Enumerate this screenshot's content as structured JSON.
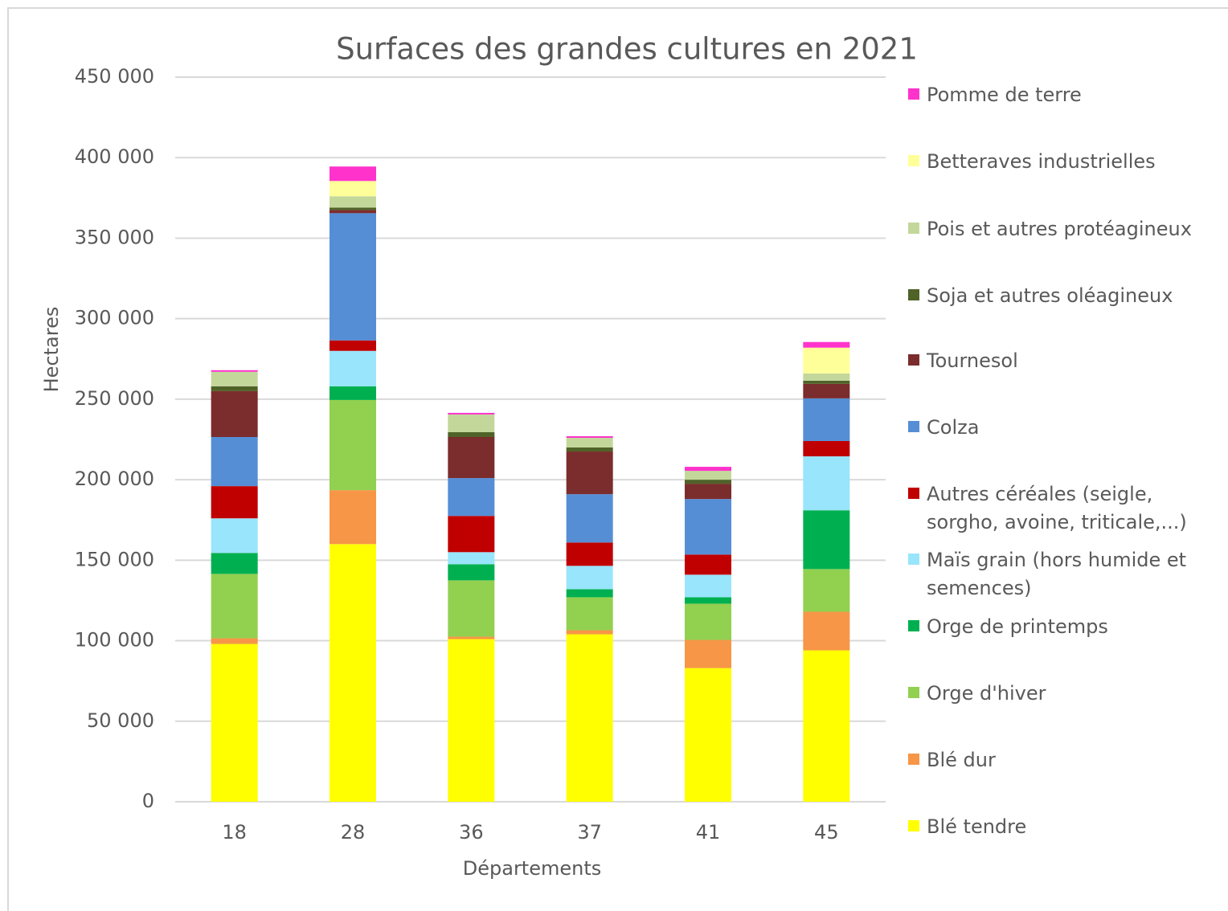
{
  "chart_data": {
    "type": "stacked_bar",
    "title": "Surfaces des grandes cultures en 2021",
    "x_label": "Départements",
    "y_label": "Hectares",
    "categories": [
      "18",
      "28",
      "36",
      "37",
      "41",
      "45"
    ],
    "series": [
      {
        "name": "Blé tendre",
        "color": "#ffff00",
        "values": [
          98000,
          160000,
          101000,
          104000,
          83000,
          94000
        ]
      },
      {
        "name": "Blé dur",
        "color": "#f79646",
        "values": [
          3500,
          33500,
          1500,
          2500,
          17500,
          24000
        ]
      },
      {
        "name": "Orge d'hiver",
        "color": "#92d050",
        "values": [
          40000,
          56000,
          35000,
          20500,
          22500,
          26500
        ]
      },
      {
        "name": "Orge de printemps",
        "color": "#00b050",
        "values": [
          13000,
          8500,
          10000,
          5000,
          4000,
          36500
        ]
      },
      {
        "name": "Maïs grain (hors humide et semences)",
        "color": "#99e5fb",
        "values": [
          21500,
          22000,
          7500,
          14500,
          14000,
          33500
        ]
      },
      {
        "name": "Autres céréales (seigle, sorgho, avoine, triticale,...)",
        "color": "#c00000",
        "values": [
          20000,
          6500,
          22500,
          14500,
          12500,
          9500
        ]
      },
      {
        "name": "Colza",
        "color": "#558ed5",
        "values": [
          30500,
          79000,
          23500,
          30000,
          34500,
          26500
        ]
      },
      {
        "name": "Tournesol",
        "color": "#7b2c2c",
        "values": [
          28500,
          2000,
          25500,
          26500,
          9500,
          9000
        ]
      },
      {
        "name": "Soja et autres oléagineux",
        "color": "#4f6228",
        "values": [
          3000,
          1500,
          3000,
          2500,
          2500,
          2000
        ]
      },
      {
        "name": "Pois et autres protéagineux",
        "color": "#c4d79b",
        "values": [
          9000,
          7000,
          11000,
          6000,
          5500,
          4500
        ]
      },
      {
        "name": "Betteraves industrielles",
        "color": "#ffff99",
        "values": [
          0,
          9500,
          0,
          0,
          0,
          16000
        ]
      },
      {
        "name": "Pomme de terre",
        "color": "#ff33cc",
        "values": [
          1000,
          9000,
          1000,
          1000,
          2500,
          3500
        ]
      }
    ],
    "ylim": [
      0,
      450000
    ],
    "yticks": [
      0,
      {
        "value": 50000,
        "label": "50 000"
      },
      {
        "value": 100000,
        "label": "100 000"
      },
      {
        "value": 150000,
        "label": "150 000"
      },
      {
        "value": 200000,
        "label": "200 000"
      },
      {
        "value": 250000,
        "label": "250 000"
      },
      {
        "value": 300000,
        "label": "300 000"
      },
      {
        "value": 350000,
        "label": "350 000"
      },
      {
        "value": 400000,
        "label": "400 000"
      },
      {
        "value": 450000,
        "label": "450 000"
      }
    ],
    "grid": true,
    "legend": "right"
  }
}
